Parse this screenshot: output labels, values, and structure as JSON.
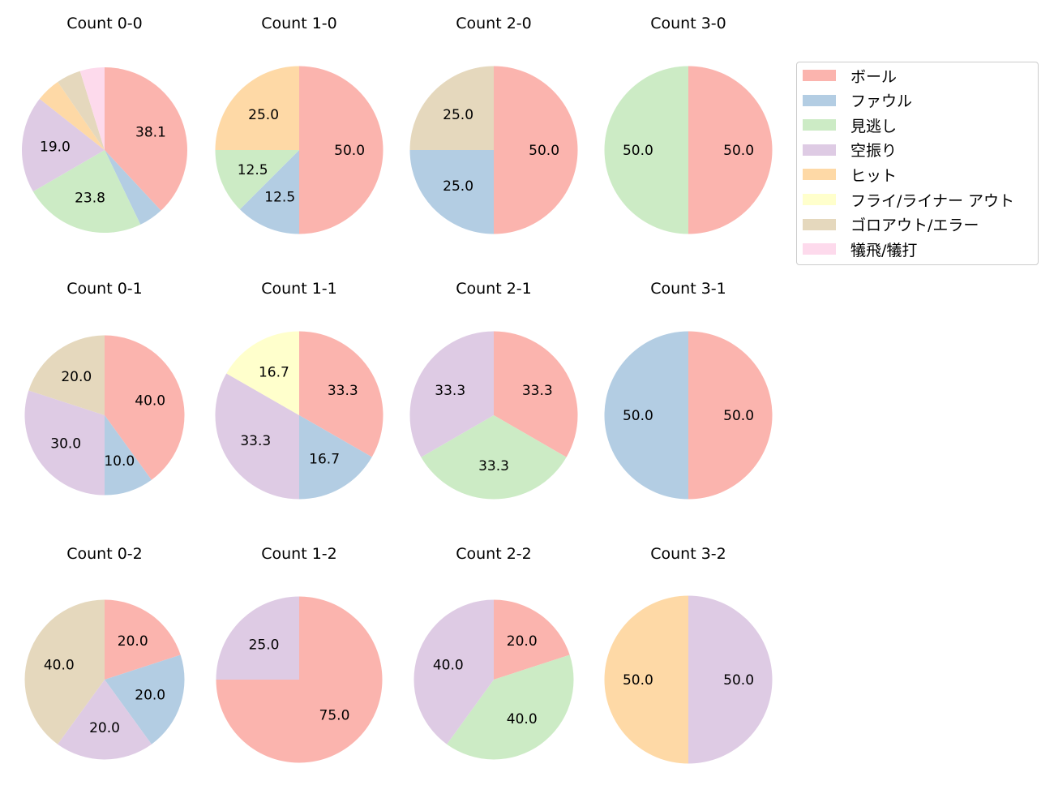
{
  "chart_data": {
    "type": "pie",
    "legend": {
      "placement": "right",
      "entries": [
        "ボール",
        "ファウル",
        "見逃し",
        "空振り",
        "ヒット",
        "フライ/ライナー アウト",
        "ゴロアウト/エラー",
        "犠飛/犠打"
      ]
    },
    "colors": [
      "#fbb4ae",
      "#b3cde3",
      "#ccebc5",
      "#decbe4",
      "#fed9a6",
      "#ffffcc",
      "#e5d8bd",
      "#fddaec"
    ],
    "charts": [
      {
        "title": "Count 0-0",
        "values": [
          38.1,
          4.8,
          23.8,
          19.0,
          4.8,
          0,
          4.8,
          4.8
        ]
      },
      {
        "title": "Count 1-0",
        "values": [
          50.0,
          12.5,
          12.5,
          0,
          25.0,
          0,
          0,
          0
        ]
      },
      {
        "title": "Count 2-0",
        "values": [
          50.0,
          25.0,
          0,
          0,
          0,
          0,
          25.0,
          0
        ]
      },
      {
        "title": "Count 3-0",
        "values": [
          50.0,
          0,
          50.0,
          0,
          0,
          0,
          0,
          0
        ]
      },
      {
        "title": "Count 0-1",
        "values": [
          40.0,
          10.0,
          0,
          30.0,
          0,
          0,
          20.0,
          0
        ]
      },
      {
        "title": "Count 1-1",
        "values": [
          33.3,
          16.7,
          0,
          33.3,
          0,
          16.7,
          0,
          0
        ]
      },
      {
        "title": "Count 2-1",
        "values": [
          33.3,
          0,
          33.3,
          33.3,
          0,
          0,
          0,
          0
        ]
      },
      {
        "title": "Count 3-1",
        "values": [
          50.0,
          50.0,
          0,
          0,
          0,
          0,
          0,
          0
        ]
      },
      {
        "title": "Count 0-2",
        "values": [
          20.0,
          20.0,
          0,
          20.0,
          0,
          0,
          40.0,
          0
        ]
      },
      {
        "title": "Count 1-2",
        "values": [
          75.0,
          0,
          0,
          25.0,
          0,
          0,
          0,
          0
        ]
      },
      {
        "title": "Count 2-2",
        "values": [
          20.0,
          0,
          40.0,
          40.0,
          0,
          0,
          0,
          0
        ]
      },
      {
        "title": "Count 3-2",
        "values": [
          0,
          0,
          0,
          50.0,
          50.0,
          0,
          0,
          0
        ]
      }
    ]
  }
}
